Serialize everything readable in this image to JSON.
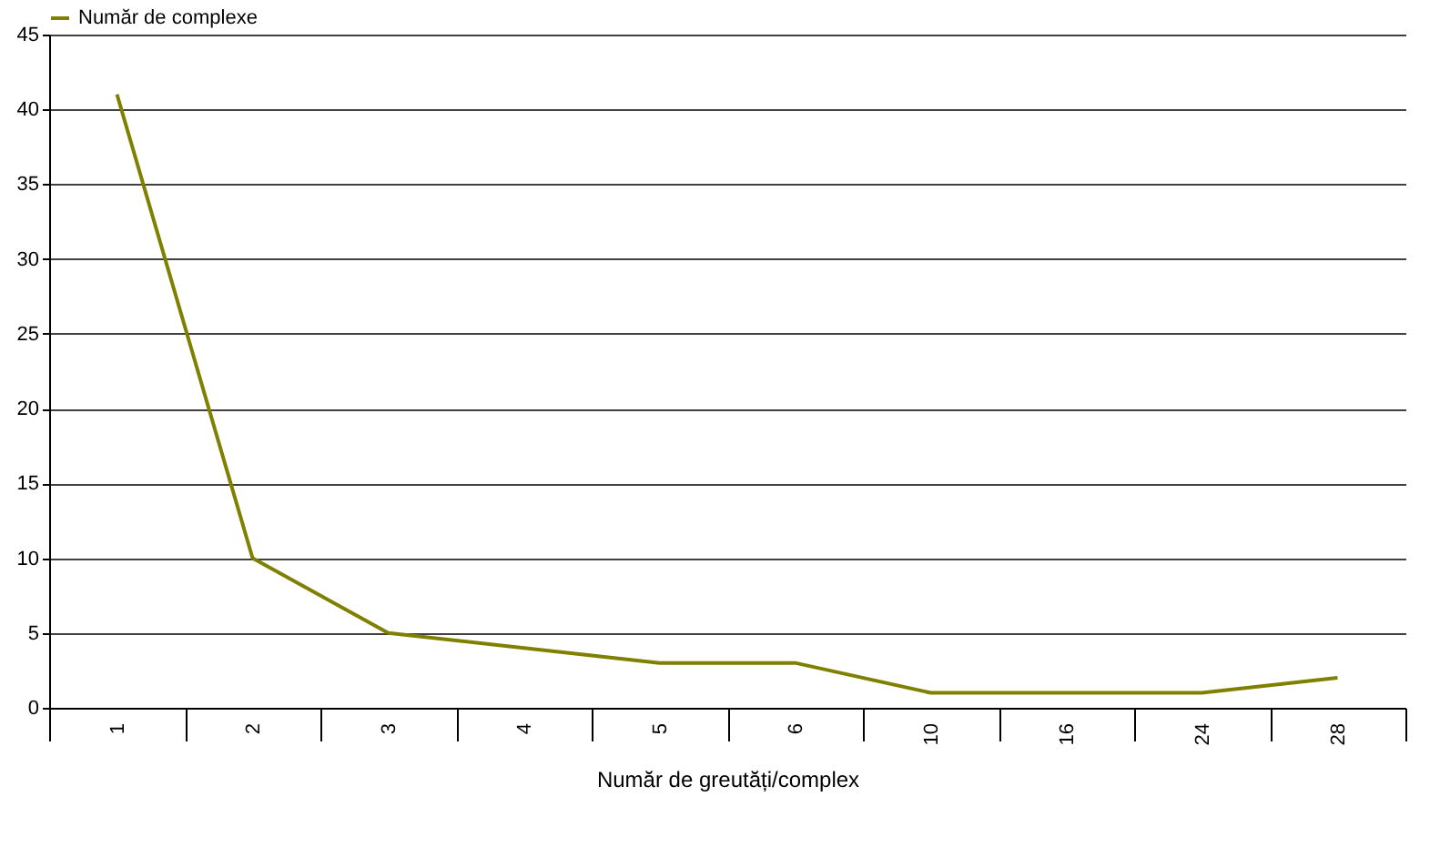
{
  "chart_data": {
    "type": "line",
    "xlabel": "Număr de greutăți/complex",
    "categories": [
      "1",
      "2",
      "3",
      "4",
      "5",
      "6",
      "10",
      "16",
      "24",
      "28"
    ],
    "series": [
      {
        "name": "Număr de complexe",
        "color": "#808000",
        "values": [
          41,
          10,
          5,
          4,
          3,
          3,
          1,
          1,
          1,
          2
        ]
      }
    ],
    "ylim": [
      0,
      45
    ],
    "yticks": [
      0,
      5,
      10,
      15,
      20,
      25,
      30,
      35,
      40,
      45
    ],
    "grid": "y",
    "legend": "top",
    "marker": "none",
    "line_style": "solid"
  }
}
